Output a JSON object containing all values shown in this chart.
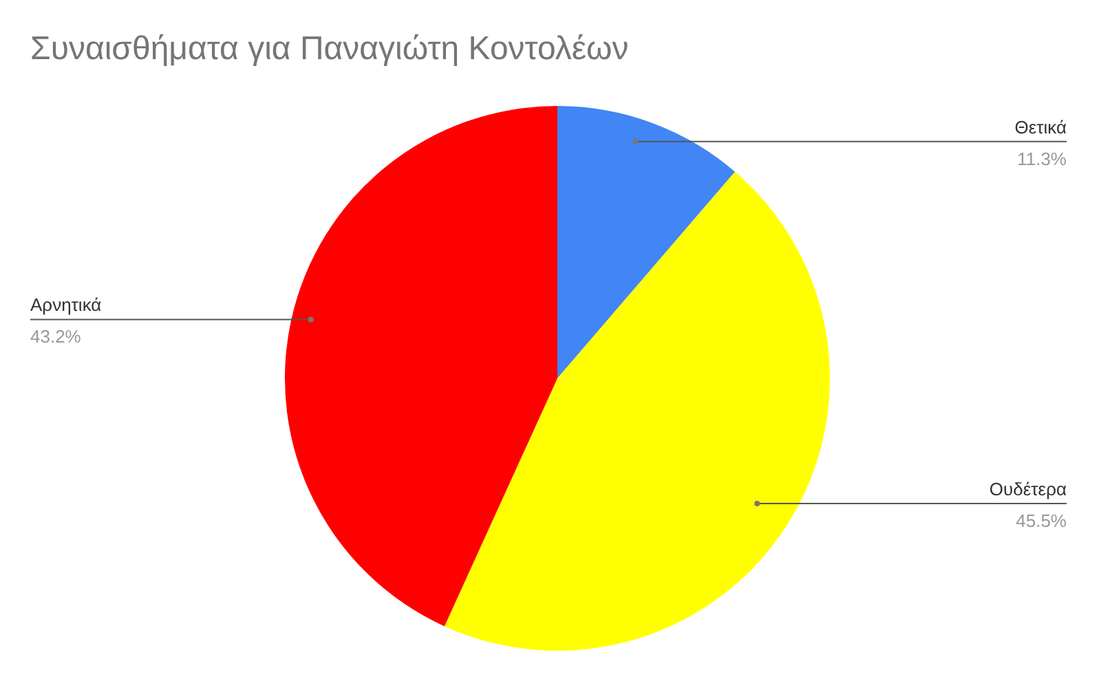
{
  "chart_data": {
    "type": "pie",
    "title": "Συναισθήματα για Παναγιώτη Κοντολέων",
    "categories": [
      "Θετικά",
      "Ουδέτερα",
      "Αρνητικά"
    ],
    "values": [
      11.3,
      45.5,
      43.2
    ],
    "value_labels": [
      "11.3%",
      "45.5%",
      "43.2%"
    ],
    "colors": [
      "#4285f4",
      "#ffff00",
      "#ff0000"
    ]
  }
}
